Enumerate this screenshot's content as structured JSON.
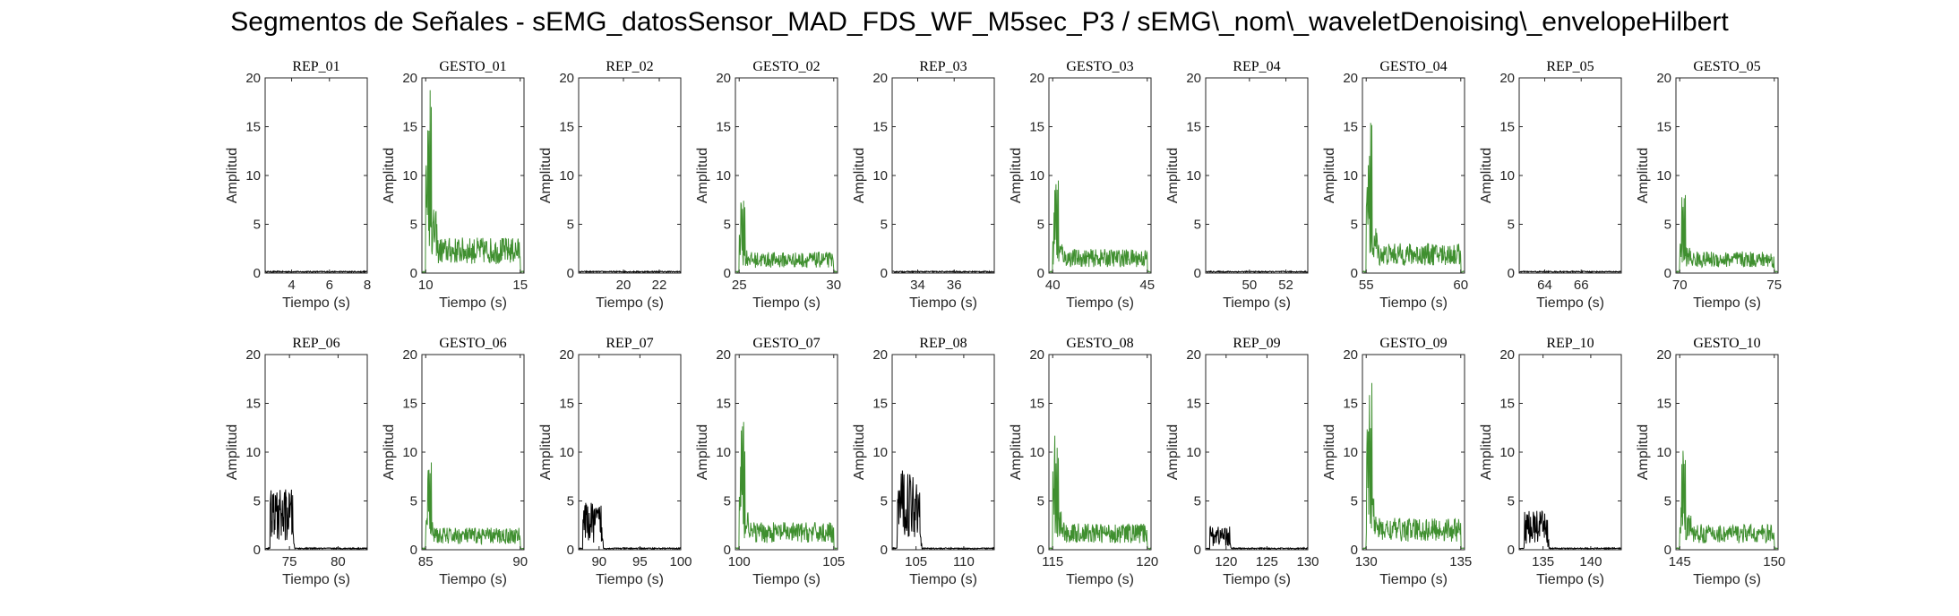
{
  "title": "Segmentos de Señales - sEMG_datosSensor_MAD_FDS_WF_M5sec_P3 / sEMG\\_nom\\_waveletDenoising\\_envelopeHilbert",
  "chart_data": {
    "type": "line",
    "layout": "2x10 subplot grid",
    "ylabel": "Amplitud",
    "xlabel": "Tiempo (s)",
    "ylim": [
      0,
      20
    ],
    "yticks": [
      0,
      5,
      10,
      15,
      20
    ],
    "colors": {
      "rep": "#000000",
      "gesto": "#3f8f2f"
    },
    "panels": [
      {
        "title": "REP_01",
        "kind": "rep",
        "xlim": [
          2.6,
          8.0
        ],
        "xticks": [
          4,
          6,
          8
        ],
        "active": null,
        "peak": 0.1
      },
      {
        "title": "GESTO_01",
        "kind": "gesto",
        "xlim": [
          9.8,
          15.2
        ],
        "xticks": [
          10,
          15
        ],
        "active": [
          10.0,
          15.0
        ],
        "peak": 20.5
      },
      {
        "title": "REP_02",
        "kind": "rep",
        "xlim": [
          17.5,
          23.2
        ],
        "xticks": [
          20,
          22
        ],
        "active": null,
        "peak": 0.1
      },
      {
        "title": "GESTO_02",
        "kind": "gesto",
        "xlim": [
          24.8,
          30.2
        ],
        "xticks": [
          25,
          30
        ],
        "active": [
          25.0,
          30.0
        ],
        "peak": 8.0
      },
      {
        "title": "REP_03",
        "kind": "rep",
        "xlim": [
          32.6,
          38.2
        ],
        "xticks": [
          34,
          36
        ],
        "active": null,
        "peak": 0.1
      },
      {
        "title": "GESTO_03",
        "kind": "gesto",
        "xlim": [
          39.8,
          45.2
        ],
        "xticks": [
          40,
          45
        ],
        "active": [
          40.0,
          45.0
        ],
        "peak": 10.5
      },
      {
        "title": "REP_04",
        "kind": "rep",
        "xlim": [
          47.6,
          53.2
        ],
        "xticks": [
          50,
          52
        ],
        "active": null,
        "peak": 0.1
      },
      {
        "title": "GESTO_04",
        "kind": "gesto",
        "xlim": [
          54.8,
          60.2
        ],
        "xticks": [
          55,
          60
        ],
        "active": [
          55.0,
          60.0
        ],
        "peak": 15.5
      },
      {
        "title": "REP_05",
        "kind": "rep",
        "xlim": [
          62.6,
          68.2
        ],
        "xticks": [
          64,
          66
        ],
        "active": null,
        "peak": 0.1
      },
      {
        "title": "GESTO_05",
        "kind": "gesto",
        "xlim": [
          69.8,
          75.2
        ],
        "xticks": [
          70,
          75
        ],
        "active": [
          70.0,
          75.0
        ],
        "peak": 8.5
      },
      {
        "title": "REP_06",
        "kind": "rep",
        "xlim": [
          72.5,
          83.0
        ],
        "xticks": [
          75,
          80
        ],
        "active": [
          73.0,
          75.5
        ],
        "peak": 6.2
      },
      {
        "title": "GESTO_06",
        "kind": "gesto",
        "xlim": [
          84.8,
          90.2
        ],
        "xticks": [
          85,
          90
        ],
        "active": [
          85.0,
          90.0
        ],
        "peak": 9.0
      },
      {
        "title": "REP_07",
        "kind": "rep",
        "xlim": [
          87.5,
          100.0
        ],
        "xticks": [
          90,
          95,
          100
        ],
        "active": [
          88.0,
          90.5
        ],
        "peak": 4.8
      },
      {
        "title": "GESTO_07",
        "kind": "gesto",
        "xlim": [
          99.8,
          105.2
        ],
        "xticks": [
          100,
          105
        ],
        "active": [
          100.0,
          105.0
        ],
        "peak": 13.5
      },
      {
        "title": "REP_08",
        "kind": "rep",
        "xlim": [
          102.5,
          113.2
        ],
        "xticks": [
          105,
          110
        ],
        "active": [
          103.0,
          105.6
        ],
        "peak": 8.2
      },
      {
        "title": "GESTO_08",
        "kind": "gesto",
        "xlim": [
          114.8,
          120.2
        ],
        "xticks": [
          115,
          120
        ],
        "active": [
          115.0,
          120.0
        ],
        "peak": 12.5
      },
      {
        "title": "REP_09",
        "kind": "rep",
        "xlim": [
          117.5,
          130.0
        ],
        "xticks": [
          120,
          125,
          130
        ],
        "active": [
          118.0,
          120.6
        ],
        "peak": 2.5
      },
      {
        "title": "GESTO_09",
        "kind": "gesto",
        "xlim": [
          129.8,
          135.2
        ],
        "xticks": [
          130,
          135
        ],
        "active": [
          130.0,
          135.0
        ],
        "peak": 17.2
      },
      {
        "title": "REP_10",
        "kind": "rep",
        "xlim": [
          132.5,
          143.2
        ],
        "xticks": [
          135,
          140
        ],
        "active": [
          133.0,
          135.6
        ],
        "peak": 4.0
      },
      {
        "title": "GESTO_10",
        "kind": "gesto",
        "xlim": [
          144.8,
          150.2
        ],
        "xticks": [
          145,
          150
        ],
        "active": [
          145.0,
          150.0
        ],
        "peak": 11.8
      }
    ]
  }
}
